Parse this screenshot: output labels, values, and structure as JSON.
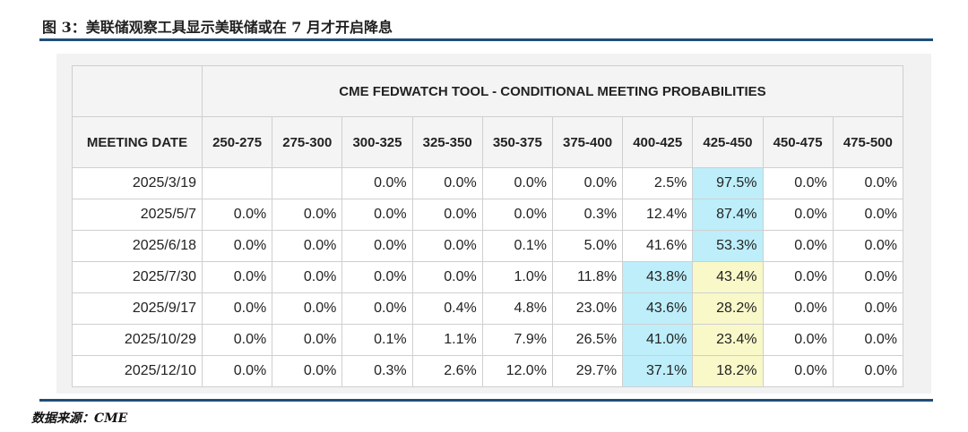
{
  "figure": {
    "title": "图 3：美联储观察工具显示美联储或在 7 月才开启降息",
    "source": "数据来源：CME"
  },
  "table": {
    "caption": "CME FEDWATCH TOOL - CONDITIONAL MEETING PROBABILITIES",
    "headers": [
      "MEETING DATE",
      "250-275",
      "275-300",
      "300-325",
      "325-350",
      "350-375",
      "375-400",
      "400-425",
      "425-450",
      "450-475",
      "475-500"
    ],
    "rows": [
      {
        "date": "2025/3/19",
        "cells": [
          "",
          "",
          "0.0%",
          "0.0%",
          "0.0%",
          "0.0%",
          "2.5%",
          "97.5%",
          "0.0%",
          "0.0%"
        ],
        "highlight": {
          "7": "cyan"
        }
      },
      {
        "date": "2025/5/7",
        "cells": [
          "0.0%",
          "0.0%",
          "0.0%",
          "0.0%",
          "0.0%",
          "0.3%",
          "12.4%",
          "87.4%",
          "0.0%",
          "0.0%"
        ],
        "highlight": {
          "7": "cyan"
        }
      },
      {
        "date": "2025/6/18",
        "cells": [
          "0.0%",
          "0.0%",
          "0.0%",
          "0.0%",
          "0.1%",
          "5.0%",
          "41.6%",
          "53.3%",
          "0.0%",
          "0.0%"
        ],
        "highlight": {
          "7": "cyan"
        }
      },
      {
        "date": "2025/7/30",
        "cells": [
          "0.0%",
          "0.0%",
          "0.0%",
          "0.0%",
          "1.0%",
          "11.8%",
          "43.8%",
          "43.4%",
          "0.0%",
          "0.0%"
        ],
        "highlight": {
          "6": "cyan",
          "7": "yellow"
        }
      },
      {
        "date": "2025/9/17",
        "cells": [
          "0.0%",
          "0.0%",
          "0.0%",
          "0.4%",
          "4.8%",
          "23.0%",
          "43.6%",
          "28.2%",
          "0.0%",
          "0.0%"
        ],
        "highlight": {
          "6": "cyan",
          "7": "yellow"
        }
      },
      {
        "date": "2025/10/29",
        "cells": [
          "0.0%",
          "0.0%",
          "0.1%",
          "1.1%",
          "7.9%",
          "26.5%",
          "41.0%",
          "23.4%",
          "0.0%",
          "0.0%"
        ],
        "highlight": {
          "6": "cyan",
          "7": "yellow"
        }
      },
      {
        "date": "2025/12/10",
        "cells": [
          "0.0%",
          "0.0%",
          "0.3%",
          "2.6%",
          "12.0%",
          "29.7%",
          "37.1%",
          "18.2%",
          "0.0%",
          "0.0%"
        ],
        "highlight": {
          "6": "cyan",
          "7": "yellow"
        }
      }
    ]
  },
  "colors": {
    "rule": "#1f4e79",
    "highlight_cyan": "#bdeefa",
    "highlight_yellow": "#f8f8c9"
  }
}
